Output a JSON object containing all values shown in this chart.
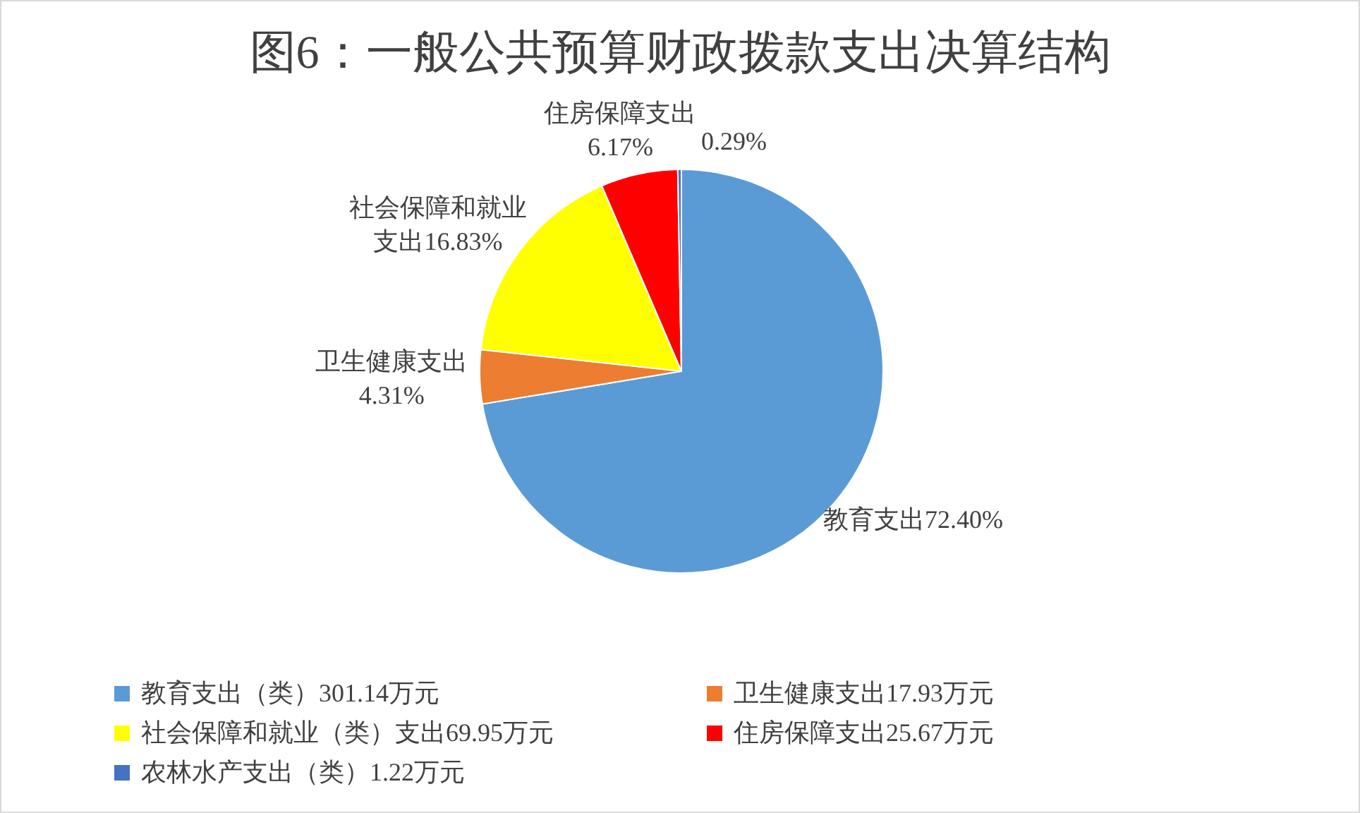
{
  "chart_data": {
    "type": "pie",
    "title": "图6：一般公共预算财政拨款支出决算结构",
    "categories": [
      "教育支出（类）301.14万元",
      "卫生健康支出17.93万元",
      "社会保障和就业（类）支出69.95万元",
      "住房保障支出25.67万元",
      "农林水产支出（类）1.22万元"
    ],
    "values": [
      72.4,
      4.31,
      16.83,
      6.17,
      0.29
    ],
    "colors": [
      "#5b9bd5",
      "#ed7d31",
      "#ffff00",
      "#ff0000",
      "#4472c4"
    ],
    "value_labels": [
      "教育支出72.40%",
      "卫生健康支出4.31%",
      "社会保障和就业支出16.83%",
      "住房保障支出6.17%",
      "0.29%"
    ],
    "legend": "bottom"
  }
}
